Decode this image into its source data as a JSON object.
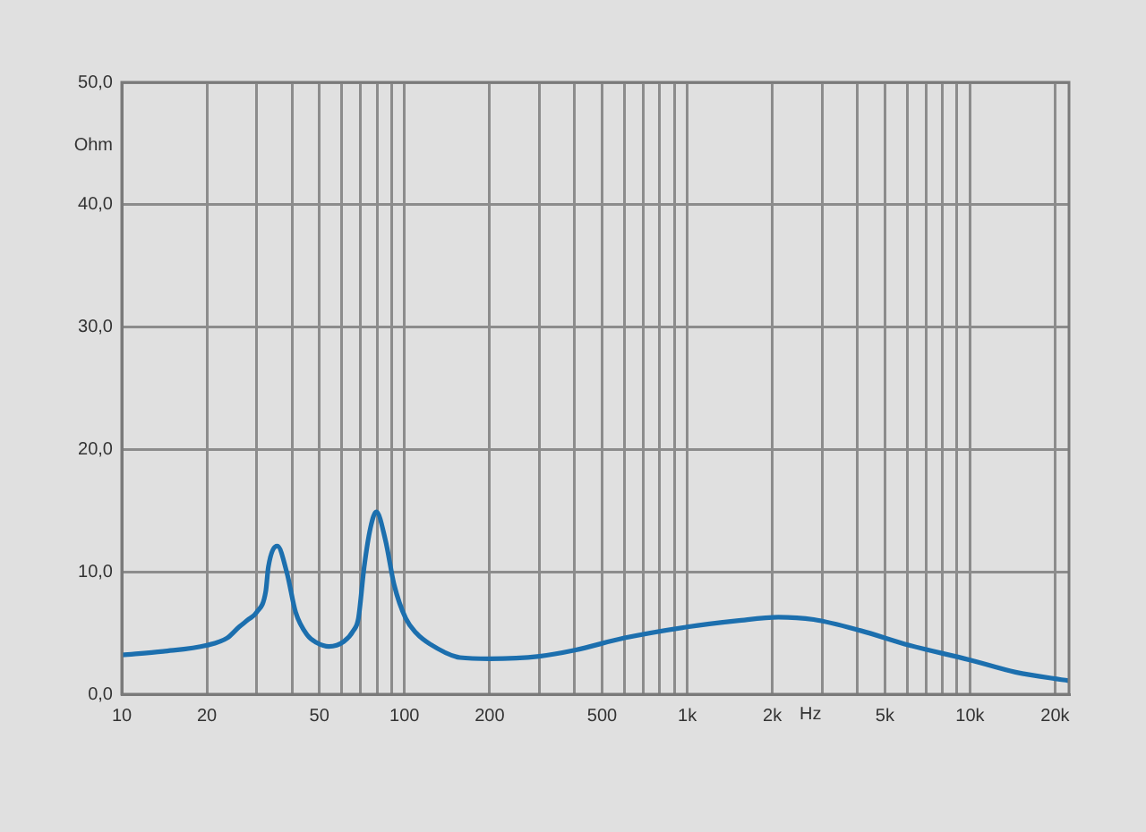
{
  "chart_data": {
    "type": "line",
    "xlabel": "Hz",
    "ylabel": "Ohm",
    "x": [
      10,
      14,
      20,
      23.6,
      26,
      28,
      30,
      32.3,
      33,
      35.5,
      38.4,
      41.2,
      45.4,
      49,
      54,
      61,
      66,
      68.7,
      72,
      75.8,
      79.5,
      85.6,
      92,
      101,
      110,
      123,
      157,
      200,
      300,
      400,
      600,
      1000,
      1500,
      2100,
      2800,
      4100,
      6100,
      10000,
      14500,
      22400
    ],
    "values": [
      3.2,
      3.5,
      4.0,
      4.6,
      5.5,
      6.1,
      6.7,
      8.4,
      10.4,
      12.1,
      9.9,
      6.7,
      4.8,
      4.2,
      3.9,
      4.3,
      5.2,
      6.2,
      10.4,
      13.6,
      14.9,
      12.6,
      8.9,
      6.2,
      5.0,
      4.1,
      3.0,
      2.9,
      3.1,
      3.6,
      4.6,
      5.5,
      6.0,
      6.3,
      6.1,
      5.2,
      4.0,
      2.8,
      1.8,
      1.1
    ],
    "color": "#1c6fae",
    "log": "x",
    "xlim": [
      10,
      22400
    ],
    "xticks": [
      10,
      20,
      {
        "value": 30,
        "label": null
      },
      {
        "value": 40,
        "label": null
      },
      50,
      {
        "value": 60,
        "label": null
      },
      {
        "value": 70,
        "label": null
      },
      {
        "value": 80,
        "label": null
      },
      {
        "value": 90,
        "label": null
      },
      100,
      200,
      {
        "value": 300,
        "label": null
      },
      {
        "value": 400,
        "label": null
      },
      500,
      {
        "value": 600,
        "label": null
      },
      {
        "value": 700,
        "label": null
      },
      {
        "value": 800,
        "label": null
      },
      {
        "value": 900,
        "label": null
      },
      {
        "value": 1000,
        "label": "1k"
      },
      {
        "value": 2000,
        "label": "2k"
      },
      {
        "value": 3000,
        "label": null
      },
      {
        "value": 4000,
        "label": null
      },
      {
        "value": 5000,
        "label": "5k"
      },
      {
        "value": 6000,
        "label": null
      },
      {
        "value": 7000,
        "label": null
      },
      {
        "value": 8000,
        "label": null
      },
      {
        "value": 9000,
        "label": null
      },
      {
        "value": 10000,
        "label": "10k"
      },
      {
        "value": 20000,
        "label": "20k"
      }
    ],
    "ylim": [
      0,
      50
    ],
    "yticks": [
      {
        "value": 0,
        "label": "0,0"
      },
      {
        "value": 10,
        "label": "10,0"
      },
      {
        "value": 20,
        "label": "20,0"
      },
      {
        "value": 30,
        "label": "30,0"
      },
      {
        "value": 40,
        "label": "40,0"
      },
      {
        "value": 50,
        "label": "50,0"
      }
    ],
    "grid": true,
    "marker": "none",
    "line_style": "solid"
  }
}
